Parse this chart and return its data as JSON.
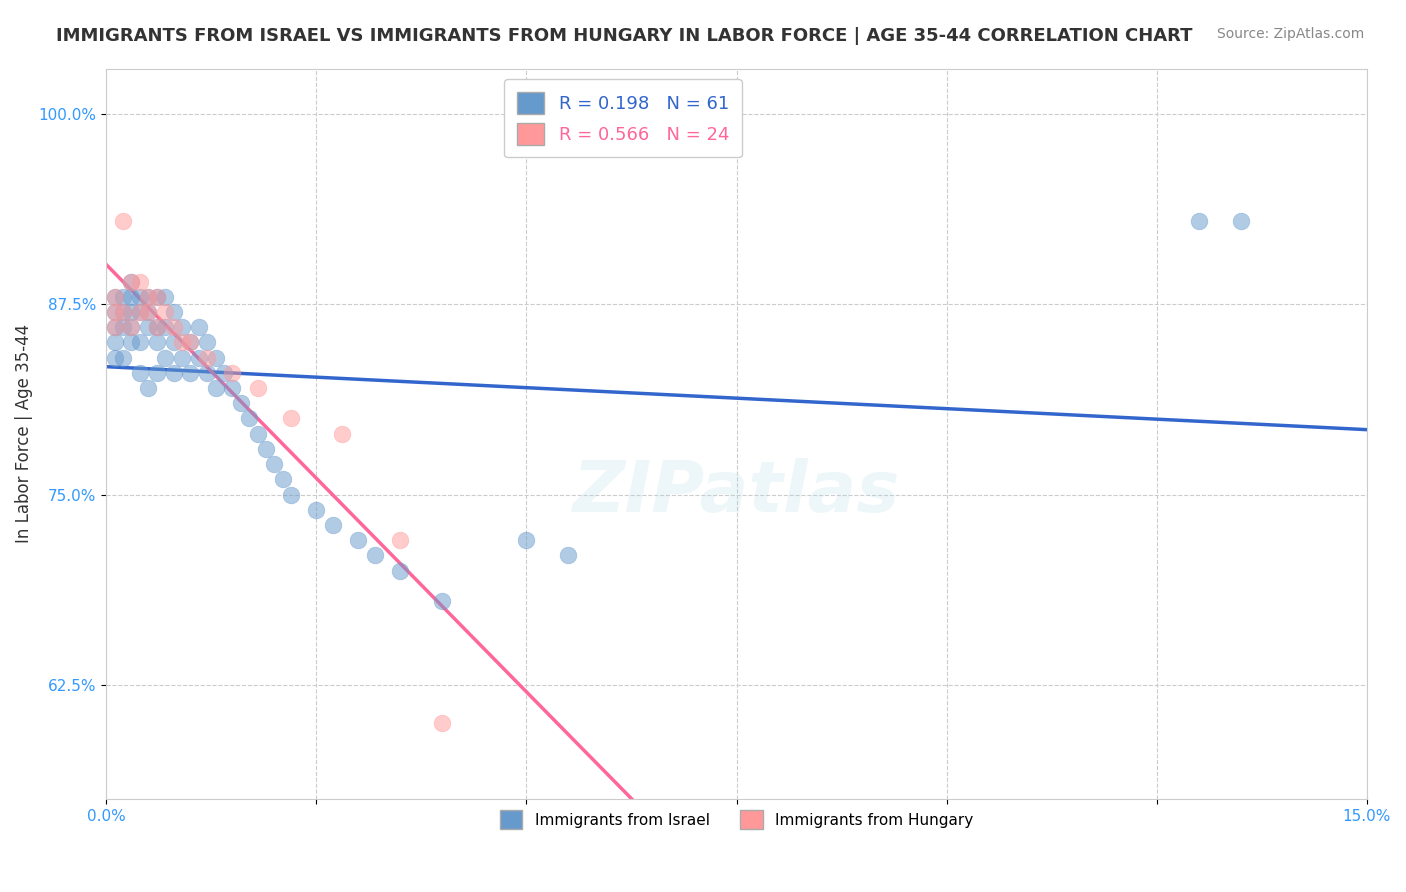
{
  "title": "IMMIGRANTS FROM ISRAEL VS IMMIGRANTS FROM HUNGARY IN LABOR FORCE | AGE 35-44 CORRELATION CHART",
  "source": "Source: ZipAtlas.com",
  "ylabel": "In Labor Force | Age 35-44",
  "xlim": [
    0.0,
    0.15
  ],
  "ylim": [
    0.55,
    1.03
  ],
  "xticks": [
    0.0,
    0.025,
    0.05,
    0.075,
    0.1,
    0.125,
    0.15
  ],
  "xticklabels": [
    "0.0%",
    "",
    "",
    "",
    "",
    "",
    "15.0%"
  ],
  "ytick_positions": [
    0.625,
    0.75,
    0.875,
    1.0
  ],
  "ytick_labels": [
    "62.5%",
    "75.0%",
    "87.5%",
    "100.0%"
  ],
  "israel_color": "#6699cc",
  "hungary_color": "#ff9999",
  "israel_trend_color": "#3366cc",
  "hungary_trend_color": "#ff6699",
  "R_israel": 0.198,
  "N_israel": 61,
  "R_hungary": 0.566,
  "N_hungary": 24,
  "israel_x": [
    0.001,
    0.001,
    0.001,
    0.001,
    0.001,
    0.002,
    0.002,
    0.002,
    0.002,
    0.003,
    0.003,
    0.003,
    0.003,
    0.003,
    0.004,
    0.004,
    0.004,
    0.004,
    0.005,
    0.005,
    0.005,
    0.005,
    0.006,
    0.006,
    0.006,
    0.006,
    0.007,
    0.007,
    0.007,
    0.008,
    0.008,
    0.008,
    0.009,
    0.009,
    0.01,
    0.01,
    0.011,
    0.011,
    0.012,
    0.012,
    0.013,
    0.013,
    0.014,
    0.015,
    0.016,
    0.017,
    0.018,
    0.019,
    0.02,
    0.021,
    0.022,
    0.025,
    0.027,
    0.03,
    0.032,
    0.035,
    0.04,
    0.05,
    0.055,
    0.13,
    0.135
  ],
  "israel_y": [
    0.88,
    0.87,
    0.86,
    0.85,
    0.84,
    0.88,
    0.87,
    0.86,
    0.84,
    0.89,
    0.88,
    0.87,
    0.86,
    0.85,
    0.88,
    0.87,
    0.85,
    0.83,
    0.88,
    0.87,
    0.86,
    0.82,
    0.88,
    0.86,
    0.85,
    0.83,
    0.88,
    0.86,
    0.84,
    0.87,
    0.85,
    0.83,
    0.86,
    0.84,
    0.85,
    0.83,
    0.86,
    0.84,
    0.85,
    0.83,
    0.84,
    0.82,
    0.83,
    0.82,
    0.81,
    0.8,
    0.79,
    0.78,
    0.77,
    0.76,
    0.75,
    0.74,
    0.73,
    0.72,
    0.71,
    0.7,
    0.68,
    0.72,
    0.71,
    0.93,
    0.93
  ],
  "hungary_x": [
    0.001,
    0.001,
    0.001,
    0.002,
    0.002,
    0.003,
    0.003,
    0.004,
    0.004,
    0.005,
    0.005,
    0.006,
    0.006,
    0.007,
    0.008,
    0.009,
    0.01,
    0.012,
    0.015,
    0.018,
    0.022,
    0.028,
    0.035,
    0.04
  ],
  "hungary_y": [
    0.88,
    0.87,
    0.86,
    0.93,
    0.87,
    0.89,
    0.86,
    0.89,
    0.87,
    0.88,
    0.87,
    0.88,
    0.86,
    0.87,
    0.86,
    0.85,
    0.85,
    0.84,
    0.83,
    0.82,
    0.8,
    0.79,
    0.72,
    0.6
  ],
  "background_color": "#ffffff",
  "grid_color": "#cccccc",
  "title_fontsize": 13,
  "axis_label_fontsize": 12,
  "tick_fontsize": 11,
  "legend_fontsize": 13,
  "marker_size": 12,
  "marker_alpha": 0.5,
  "watermark": "ZIPatlas",
  "bottom_legend_israel": "Immigrants from Israel",
  "bottom_legend_hungary": "Immigrants from Hungary"
}
